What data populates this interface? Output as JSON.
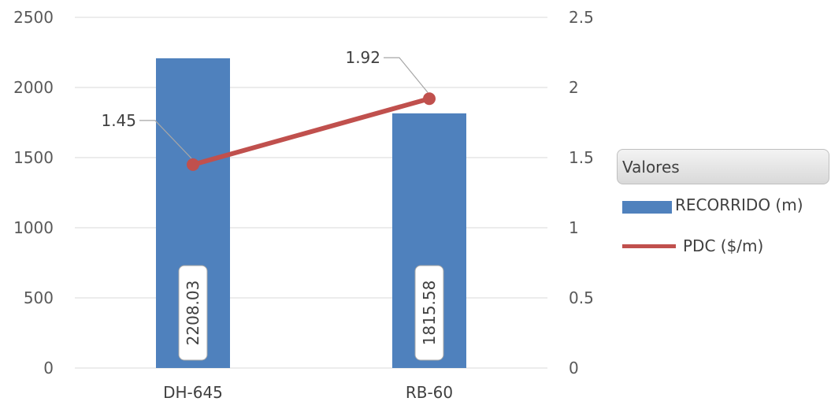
{
  "chart_data": {
    "type": "bar",
    "categories": [
      "DH-645",
      "RB-60"
    ],
    "series": [
      {
        "name": "RECORRIDO (m)",
        "kind": "bar",
        "axis": "left",
        "color": "#4F81BD",
        "values": [
          2208.03,
          1815.58
        ],
        "labels": [
          "2208.03",
          "1815.58"
        ]
      },
      {
        "name": "PDC ($/m)",
        "kind": "line",
        "axis": "right",
        "color": "#C0504D",
        "values": [
          1.45,
          1.92
        ],
        "labels": [
          "1.45",
          "1.92"
        ]
      }
    ],
    "y_left": {
      "ylim": [
        0,
        2500
      ],
      "ticks": [
        "0",
        "500",
        "1000",
        "1500",
        "2000",
        "2500"
      ]
    },
    "y_right": {
      "ylim": [
        0,
        2.5
      ],
      "ticks": [
        "0",
        "0.5",
        "1",
        "1.5",
        "2",
        "2.5"
      ]
    },
    "grid": true,
    "legend": {
      "title": "Valores",
      "position": "right"
    }
  }
}
